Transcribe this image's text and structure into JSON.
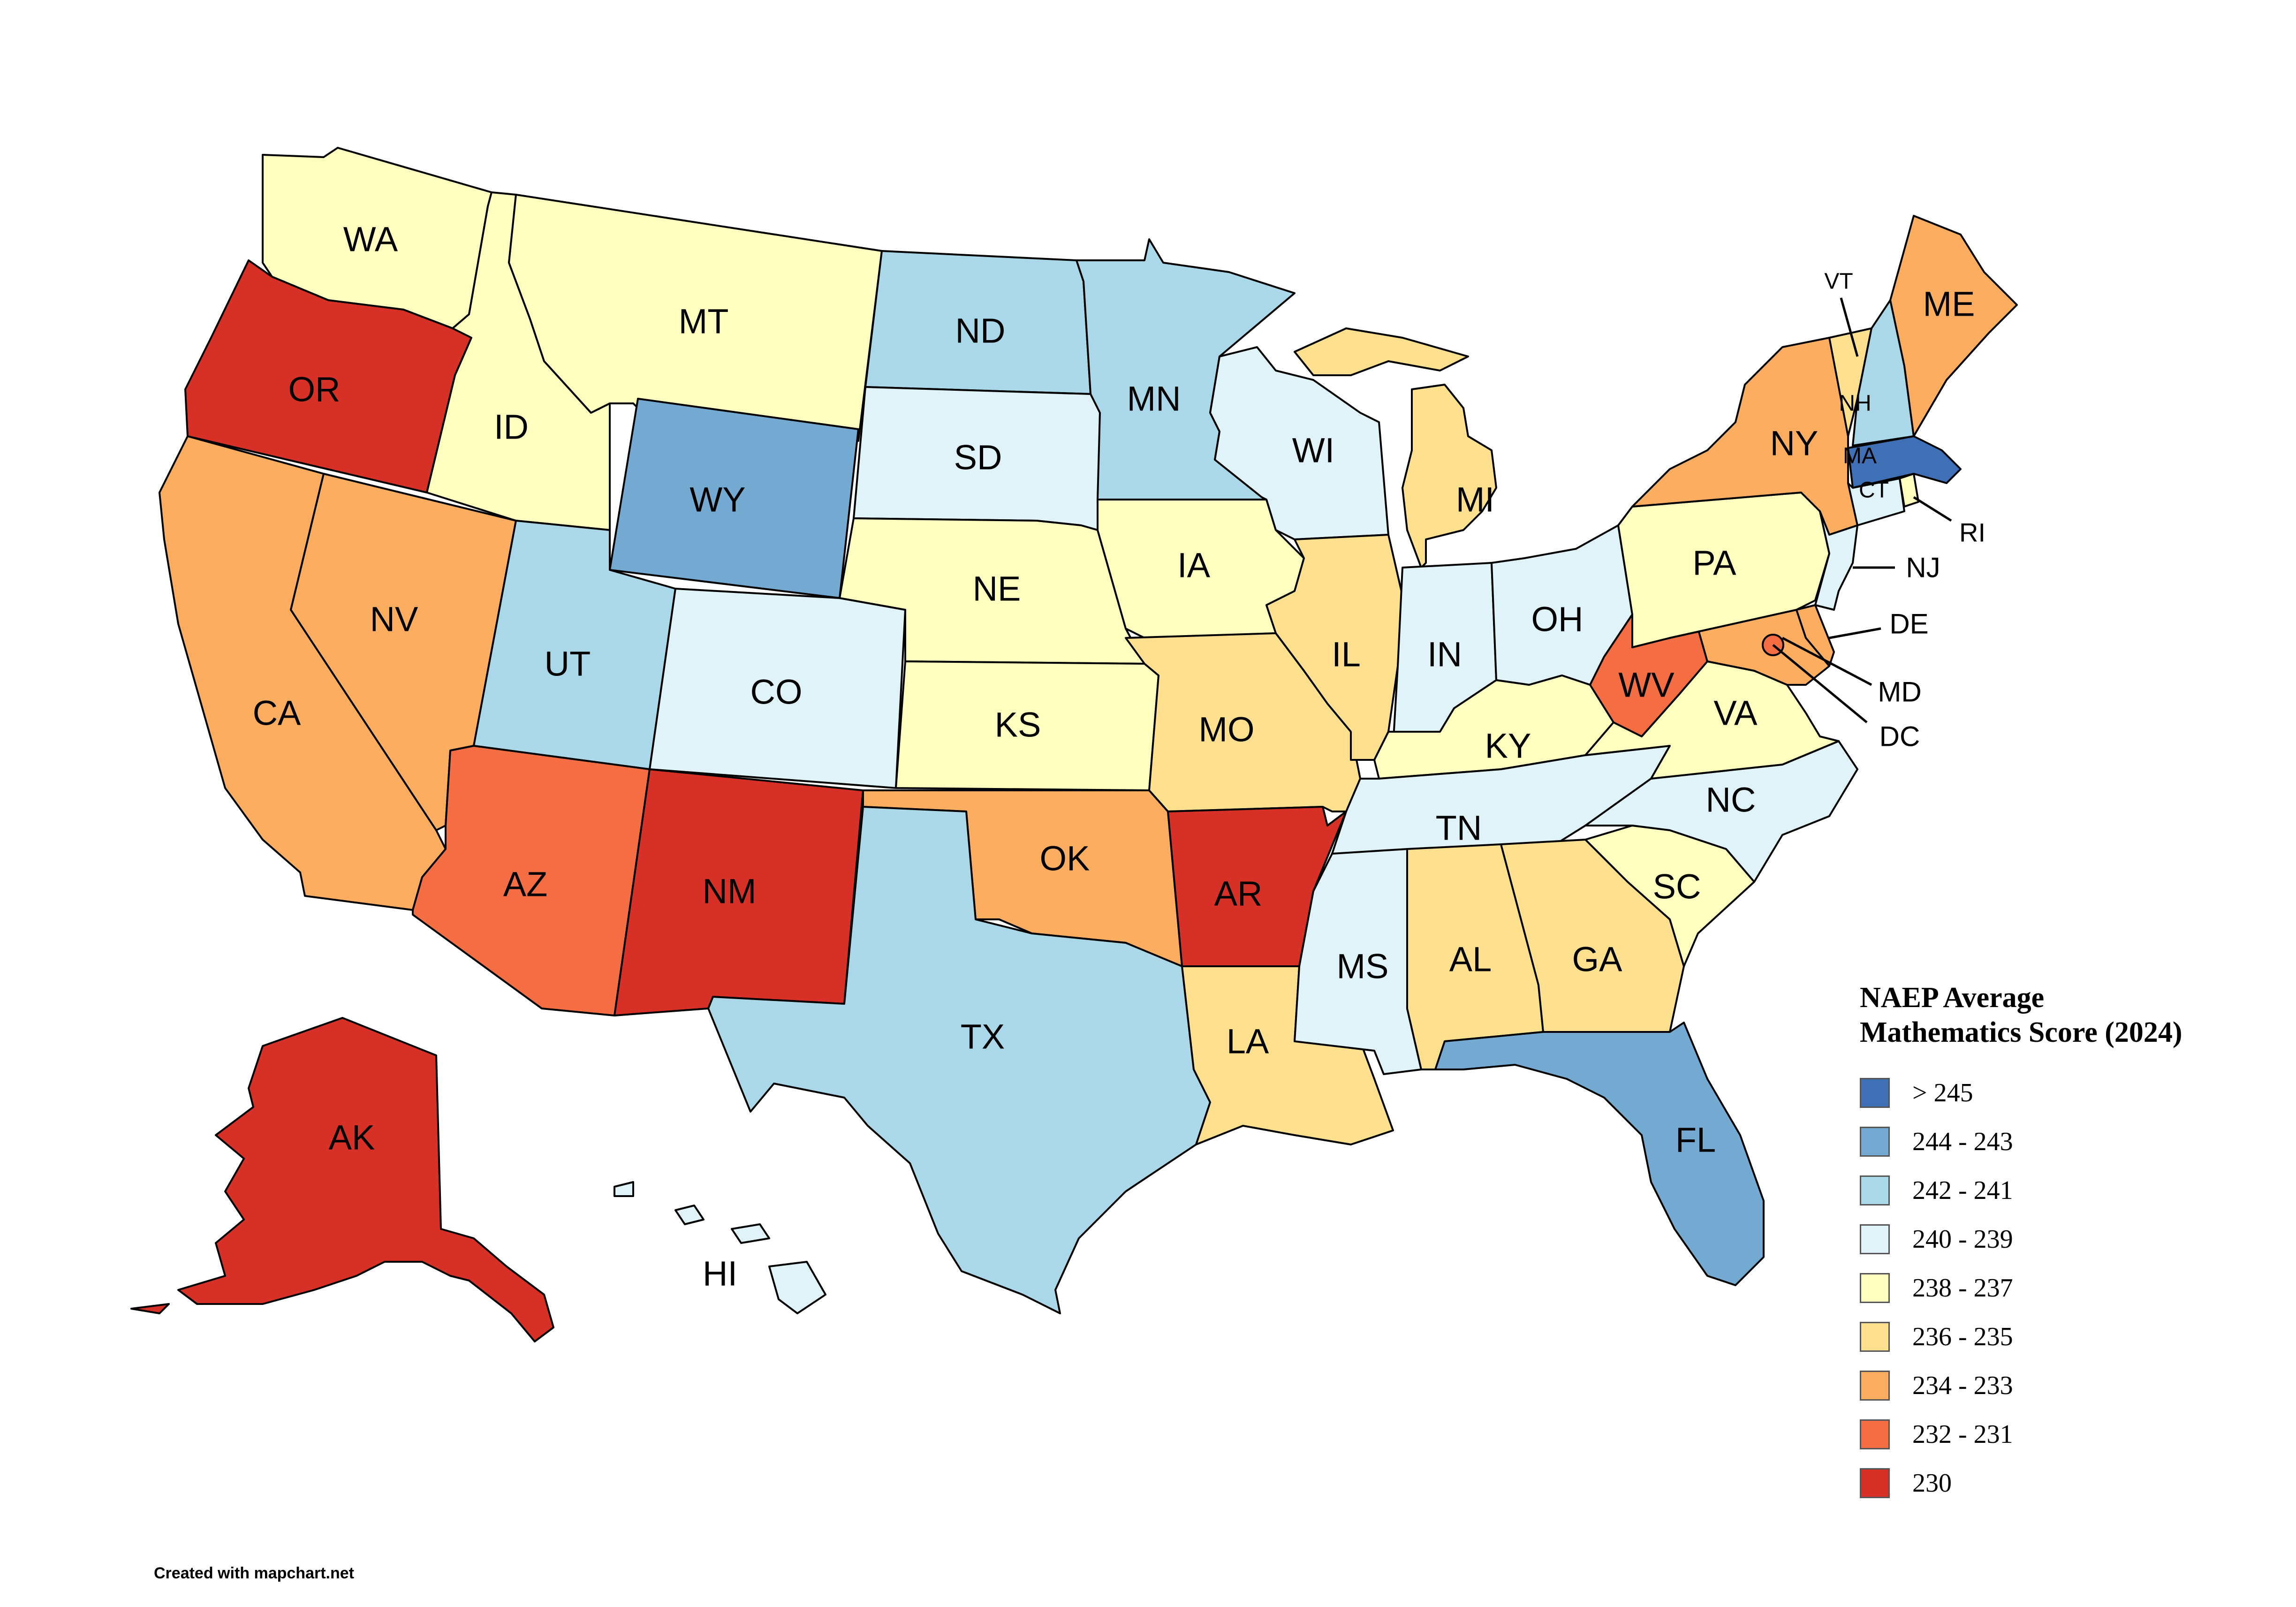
{
  "colors": {
    "c1": "#3f6fb5",
    "c2": "#74aad1",
    "c3": "#abd8e9",
    "c4": "#e0f3f8",
    "c5": "#ffffbf",
    "c6": "#fee08f",
    "c7": "#fdad60",
    "c8": "#f46d43",
    "c9": "#d73027"
  },
  "legend": {
    "title_line1": "NAEP Average",
    "title_line2": "Mathematics Score (2024)",
    "items": [
      {
        "label": "> 245",
        "color": "#3f6fb5"
      },
      {
        "label": "244 - 243",
        "color": "#74aad1"
      },
      {
        "label": "242 - 241",
        "color": "#abd8e9"
      },
      {
        "label": "240 - 239",
        "color": "#e0f3f8"
      },
      {
        "label": "238 - 237",
        "color": "#ffffbf"
      },
      {
        "label": "236 - 235",
        "color": "#fee08f"
      },
      {
        "label": "234 - 233",
        "color": "#fdad60"
      },
      {
        "label": "232 - 231",
        "color": "#f46d43"
      },
      {
        "label": "230",
        "color": "#d73027"
      }
    ]
  },
  "states": {
    "WA": "WA",
    "OR": "OR",
    "CA": "CA",
    "ID": "ID",
    "NV": "NV",
    "MT": "MT",
    "WY": "WY",
    "UT": "UT",
    "AZ": "AZ",
    "CO": "CO",
    "NM": "NM",
    "ND": "ND",
    "SD": "SD",
    "NE": "NE",
    "KS": "KS",
    "OK": "OK",
    "TX": "TX",
    "MN": "MN",
    "IA": "IA",
    "MO": "MO",
    "AR": "AR",
    "LA": "LA",
    "WI": "WI",
    "IL": "IL",
    "MI": "MI",
    "IN": "IN",
    "OH": "OH",
    "KY": "KY",
    "TN": "TN",
    "MS": "MS",
    "AL": "AL",
    "GA": "GA",
    "FL": "FL",
    "SC": "SC",
    "NC": "NC",
    "VA": "VA",
    "WV": "WV",
    "PA": "PA",
    "NY": "NY",
    "VT": "VT",
    "NH": "NH",
    "ME": "ME",
    "MA": "MA",
    "RI": "RI",
    "CT": "CT",
    "NJ": "NJ",
    "DE": "DE",
    "MD": "MD",
    "DC": "DC",
    "AK": "AK",
    "HI": "HI"
  },
  "credit": "Created with mapchart.net"
}
